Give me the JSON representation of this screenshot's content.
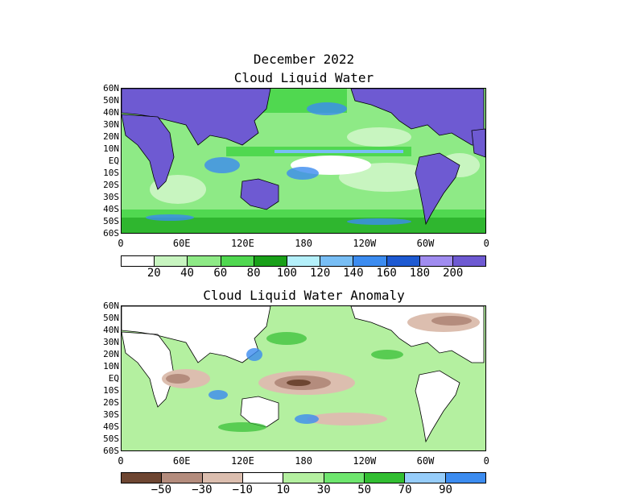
{
  "title": "December 2022",
  "panel1": {
    "title": "Cloud Liquid Water",
    "colorbar": {
      "colors": [
        "#ffffff",
        "#c8f5c0",
        "#8eea86",
        "#50d850",
        "#19a019",
        "#b4f0fa",
        "#78bef5",
        "#3c8cf0",
        "#1e5ad2",
        "#a08cf0",
        "#6e5ad2"
      ],
      "labels": [
        "20",
        "40",
        "60",
        "80",
        "100",
        "120",
        "140",
        "160",
        "180",
        "200"
      ]
    }
  },
  "panel2": {
    "title": "Cloud Liquid Water Anomaly",
    "colorbar": {
      "colors": [
        "#6e4632",
        "#b48c7d",
        "#dcbeaf",
        "#ffffff",
        "#b4f0a0",
        "#6ee66e",
        "#32be32",
        "#96cdfa",
        "#3c8cf0"
      ],
      "labels": [
        "−50",
        "−30",
        "−10",
        "10",
        "30",
        "50",
        "70",
        "90"
      ]
    }
  },
  "lat_labels": [
    "60N",
    "50N",
    "40N",
    "30N",
    "20N",
    "10N",
    "EQ",
    "10S",
    "20S",
    "30S",
    "40S",
    "50S",
    "60S"
  ],
  "lon_labels": [
    "0",
    "60E",
    "120E",
    "180",
    "120W",
    "60W",
    "0"
  ]
}
